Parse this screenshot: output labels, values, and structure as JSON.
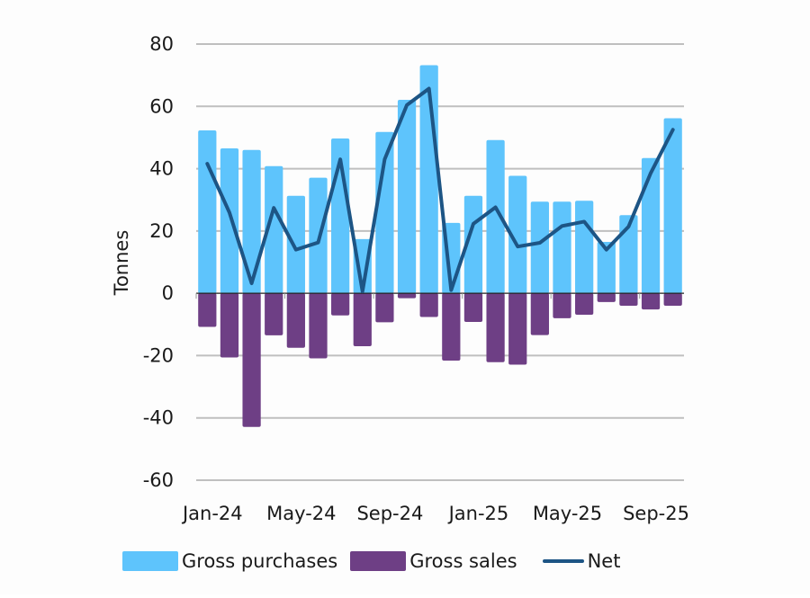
{
  "chart_data": {
    "type": "bar",
    "title": "",
    "xlabel": "",
    "ylabel": "Tonnes",
    "ylim": [
      -60,
      80
    ],
    "yticks": [
      80,
      60,
      40,
      20,
      0,
      -20,
      -40,
      -60
    ],
    "ytick_labels": [
      "80",
      "60",
      "40",
      "20",
      "0",
      "-20",
      "-40",
      "-60"
    ],
    "grid": true,
    "legend_position": "bottom",
    "categories": [
      "Jan-24",
      "Feb-24",
      "Mar-24",
      "Apr-24",
      "May-24",
      "Jun-24",
      "Jul-24",
      "Aug-24",
      "Sep-24",
      "Oct-24",
      "Nov-24",
      "Dec-24",
      "Jan-25",
      "Feb-25",
      "Mar-25",
      "Apr-25",
      "May-25",
      "Jun-25",
      "Jul-25",
      "Aug-25",
      "Sep-25",
      "Oct-25"
    ],
    "xtick_labels": [
      {
        "index": 0,
        "label": "Jan-24"
      },
      {
        "index": 4,
        "label": "May-24"
      },
      {
        "index": 8,
        "label": "Sep-24"
      },
      {
        "index": 12,
        "label": "Jan-25"
      },
      {
        "index": 16,
        "label": "May-25"
      },
      {
        "index": 20,
        "label": "Sep-25"
      }
    ],
    "series": [
      {
        "name": "Gross purchases",
        "type": "bar",
        "color": "#5ec4fc",
        "values": [
          52.3,
          46.5,
          46.0,
          40.8,
          31.3,
          37.1,
          49.7,
          17.4,
          51.8,
          62.1,
          73.2,
          22.6,
          31.3,
          49.2,
          37.7,
          29.4,
          29.4,
          29.7,
          16.5,
          25.1,
          43.4,
          56.2
        ]
      },
      {
        "name": "Gross sales",
        "type": "bar",
        "color": "#6e3f85",
        "values": [
          -10.8,
          -20.6,
          -42.9,
          -13.5,
          -17.5,
          -20.9,
          -7.1,
          -17.0,
          -9.3,
          -1.6,
          -7.6,
          -21.6,
          -9.2,
          -22.1,
          -22.9,
          -13.4,
          -8.0,
          -6.9,
          -2.8,
          -4.0,
          -5.2,
          -4.0
        ]
      },
      {
        "name": "Net",
        "type": "line",
        "color": "#1d5585",
        "values": [
          41.6,
          25.9,
          3.2,
          27.4,
          14.0,
          16.3,
          43.0,
          0.6,
          43.0,
          60.4,
          65.7,
          1.0,
          22.3,
          27.6,
          15.0,
          16.2,
          21.6,
          23.0,
          14.0,
          21.4,
          38.6,
          52.5
        ]
      }
    ],
    "legend": [
      "Gross purchases",
      "Gross sales",
      "Net"
    ]
  }
}
